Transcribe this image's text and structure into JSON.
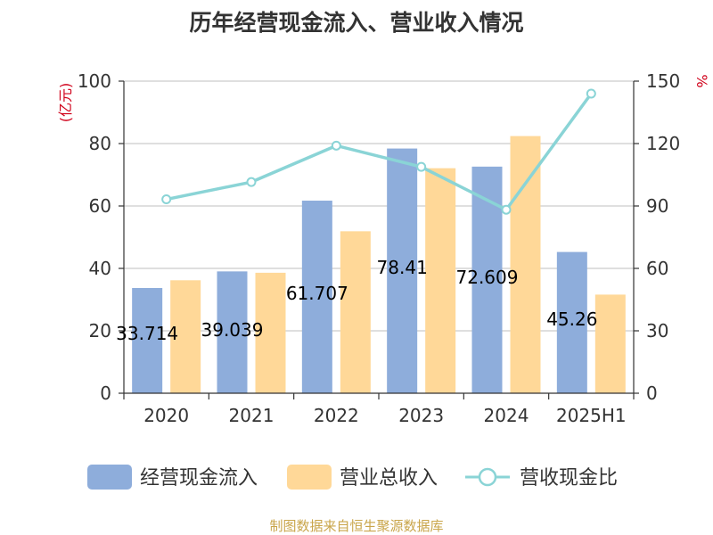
{
  "header": {
    "title": "历年经营现金流入、营业收入情况"
  },
  "footer": {
    "source": "制图数据来自恒生聚源数据库"
  },
  "chart_data": {
    "type": "bar",
    "title": "历年经营现金流入、营业收入情况",
    "categories": [
      "2020",
      "2021",
      "2022",
      "2023",
      "2024",
      "2025H1"
    ],
    "y_left": {
      "unit": "(亿元)",
      "range": [
        0,
        100
      ],
      "ticks": [
        0,
        20,
        40,
        60,
        80,
        100
      ]
    },
    "y_right": {
      "unit": "%",
      "range": [
        0,
        150
      ],
      "ticks": [
        0,
        30,
        60,
        90,
        120,
        150
      ]
    },
    "grid": true,
    "legend_position": "bottom",
    "series": [
      {
        "name": "经营现金流入",
        "type": "bar",
        "axis": "left",
        "color": "#8eaddb",
        "values": [
          33.714,
          39.039,
          61.707,
          78.41,
          72.609,
          45.26
        ],
        "labels": [
          "33.714",
          "39.039",
          "61.707",
          "78.41",
          "72.609",
          "45.26"
        ]
      },
      {
        "name": "营业总收入",
        "type": "bar",
        "axis": "left",
        "color": "#ffd898",
        "values": [
          36.2,
          38.6,
          51.9,
          72.1,
          82.4,
          31.6
        ]
      },
      {
        "name": "营收现金比",
        "type": "line",
        "axis": "right",
        "color": "#8ad4d6",
        "values": [
          93.2,
          101.5,
          119.0,
          108.8,
          88.2,
          144.0
        ]
      }
    ]
  }
}
